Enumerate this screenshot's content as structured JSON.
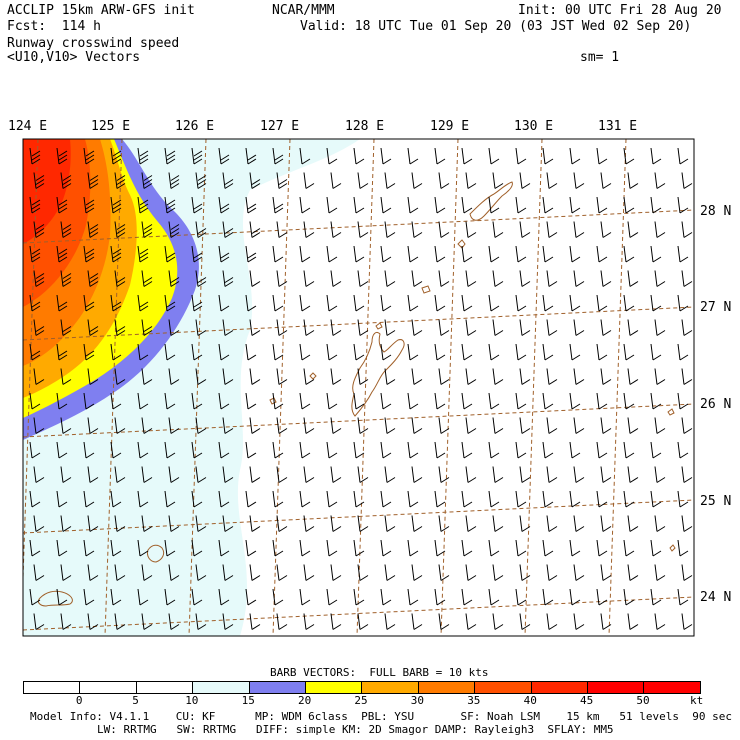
{
  "header": {
    "title": "ACCLIP 15km ARW-GFS init",
    "center": "NCAR/MMM",
    "init": "Init: 00 UTC Fri 28 Aug 20",
    "forecast": "Fcst:  114 h",
    "valid": "Valid: 18 UTC Tue 01 Sep 20 (03 JST Wed 02 Sep 20)",
    "field": "Runway crosswind speed",
    "vectors": "<U10,V10> Vectors",
    "smoothing": "sm= 1"
  },
  "map": {
    "lon_labels": [
      "124 E",
      "125 E",
      "126 E",
      "127 E",
      "128 E",
      "129 E",
      "130 E",
      "131 E"
    ],
    "lat_labels": [
      "28 N",
      "27 N",
      "26 N",
      "25 N",
      "24 N"
    ],
    "background_color": "#e6fafa",
    "grid_color": "#a0602a",
    "coast_color": "#a0602a"
  },
  "legend": {
    "barb_note": "BARB VECTORS:  FULL BARB = 10 kts",
    "ticks": [
      "0",
      "5",
      "10",
      "15",
      "20",
      "25",
      "30",
      "35",
      "40",
      "45",
      "50"
    ],
    "unit": "kt",
    "colors": [
      "#ffffff",
      "#ffffff",
      "#ffffff",
      "#e6fafa",
      "#7f7ff0",
      "#ffff00",
      "#ffaa00",
      "#ff7b00",
      "#ff5000",
      "#ff2800",
      "#ff0000",
      "#ff0000"
    ]
  },
  "footer": {
    "line1": "Model Info: V4.1.1    CU: KF      MP: WDM 6class  PBL: YSU       SF: Noah LSM    15 km   51 levels  90 sec",
    "line2": "LW: RRTMG   SW: RRTMG   DIFF: simple KM: 2D Smagor DAMP: Rayleigh3  SFLAY: MM5"
  }
}
